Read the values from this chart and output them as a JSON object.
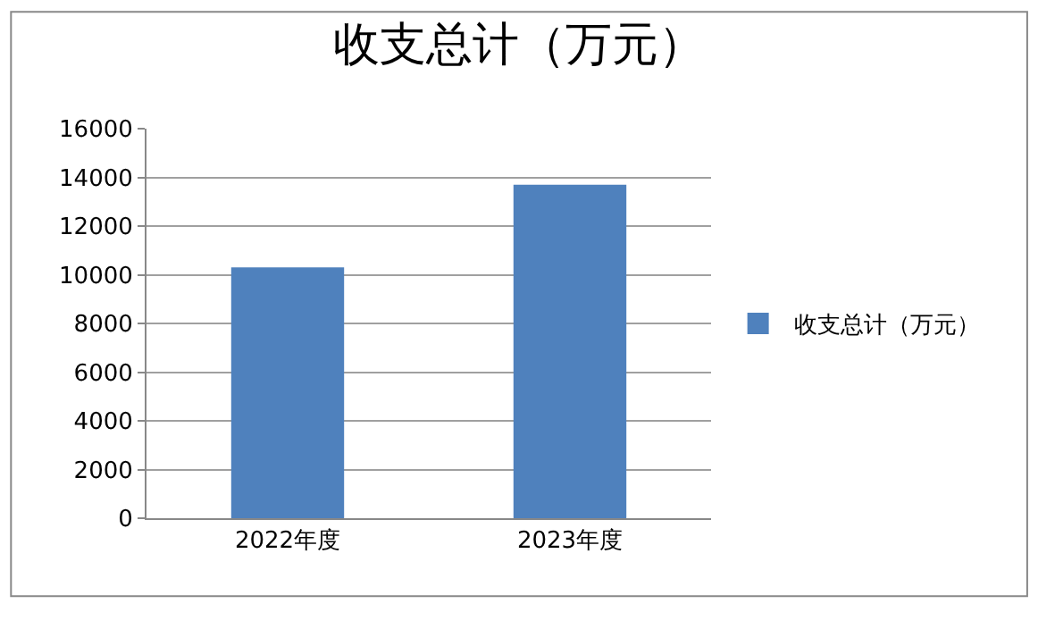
{
  "chart_data": {
    "type": "bar",
    "title": "收支总计（万元）",
    "categories": [
      "2022年度",
      "2023年度"
    ],
    "series": [
      {
        "name": "收支总计（万元）",
        "color": "#4f81bd",
        "values": [
          10300,
          13700
        ]
      }
    ],
    "ylim": [
      0,
      16000
    ],
    "yticks": [
      0,
      2000,
      4000,
      6000,
      8000,
      10000,
      12000,
      14000,
      16000
    ],
    "grid": "y",
    "legend": "right"
  }
}
